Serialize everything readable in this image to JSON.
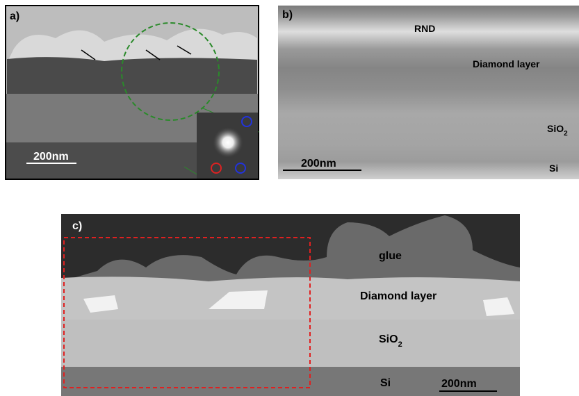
{
  "panels": [
    {
      "label": "a)",
      "scale_bar": "200nm"
    },
    {
      "label": "b)",
      "scale_bar": "200nm",
      "layers": [
        "RND",
        "Diamond layer",
        {
          "main": "SiO",
          "sub": "2"
        },
        "Si"
      ]
    },
    {
      "label": "c)",
      "scale_bar": "200nm",
      "layers": [
        "glue",
        "Diamond layer",
        {
          "main": "SiO",
          "sub": "2"
        },
        "Si"
      ]
    }
  ]
}
